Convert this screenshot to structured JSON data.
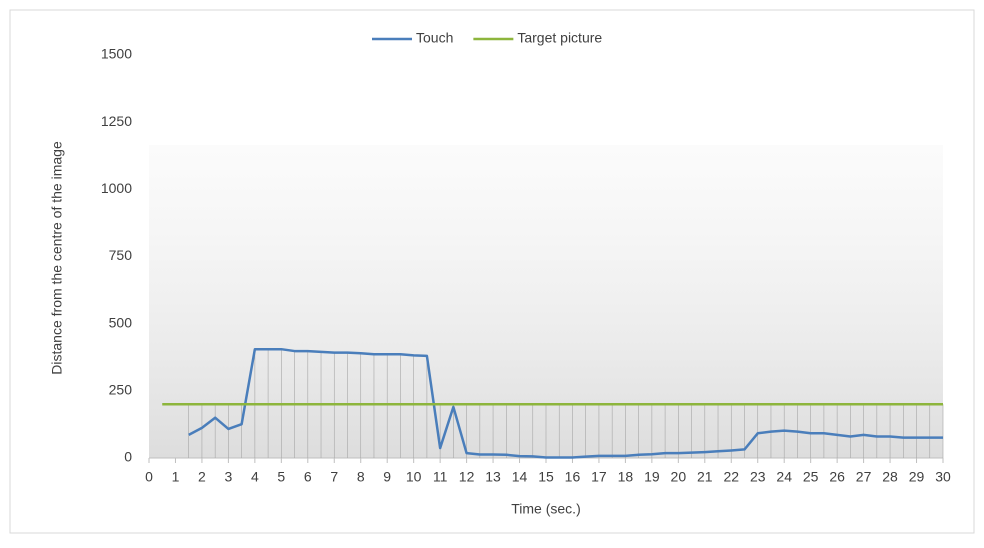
{
  "chart_data": {
    "type": "line",
    "xlabel": "Time  (sec.)",
    "ylabel": "Distance from the centre of the image",
    "xlim": [
      0,
      30
    ],
    "xticks": [
      0,
      1,
      2,
      3,
      4,
      5,
      6,
      7,
      8,
      9,
      10,
      11,
      12,
      13,
      14,
      15,
      16,
      17,
      18,
      19,
      20,
      21,
      22,
      23,
      24,
      25,
      26,
      27,
      28,
      29,
      30
    ],
    "ylim": [
      0,
      1500
    ],
    "yticks": [
      0,
      250,
      500,
      750,
      1000,
      1250,
      1500
    ],
    "grid": false,
    "legend": "top",
    "series": [
      {
        "name": "Touch",
        "color": "#4a7ebb",
        "x": [
          1.5,
          2,
          2.5,
          3,
          3.5,
          4,
          4.5,
          5,
          5.5,
          6,
          6.5,
          7,
          7.5,
          8,
          8.5,
          9,
          9.5,
          10,
          10.5,
          11,
          11.5,
          12,
          12.5,
          13,
          13.5,
          14,
          14.5,
          15,
          15.5,
          16,
          16.5,
          17,
          17.5,
          18,
          18.5,
          19,
          19.5,
          20,
          20.5,
          21,
          21.5,
          22,
          22.5,
          23,
          23.5,
          24,
          24.5,
          25,
          25.5,
          26,
          26.5,
          27,
          27.5,
          28,
          28.5,
          29,
          29.5,
          30
        ],
        "values": [
          86,
          112,
          150,
          108,
          126,
          405,
          405,
          405,
          398,
          398,
          395,
          392,
          392,
          390,
          386,
          386,
          386,
          382,
          380,
          37,
          190,
          18,
          13,
          13,
          12,
          7,
          6,
          2,
          2,
          2,
          5,
          8,
          8,
          8,
          12,
          14,
          18,
          18,
          20,
          22,
          25,
          28,
          32,
          92,
          98,
          102,
          98,
          92,
          92,
          86,
          80,
          86,
          80,
          80,
          76,
          76,
          76,
          76
        ]
      },
      {
        "name": "Target picture",
        "color": "#8db53c",
        "x": [
          0.5,
          30
        ],
        "values": [
          200,
          200
        ]
      }
    ]
  }
}
